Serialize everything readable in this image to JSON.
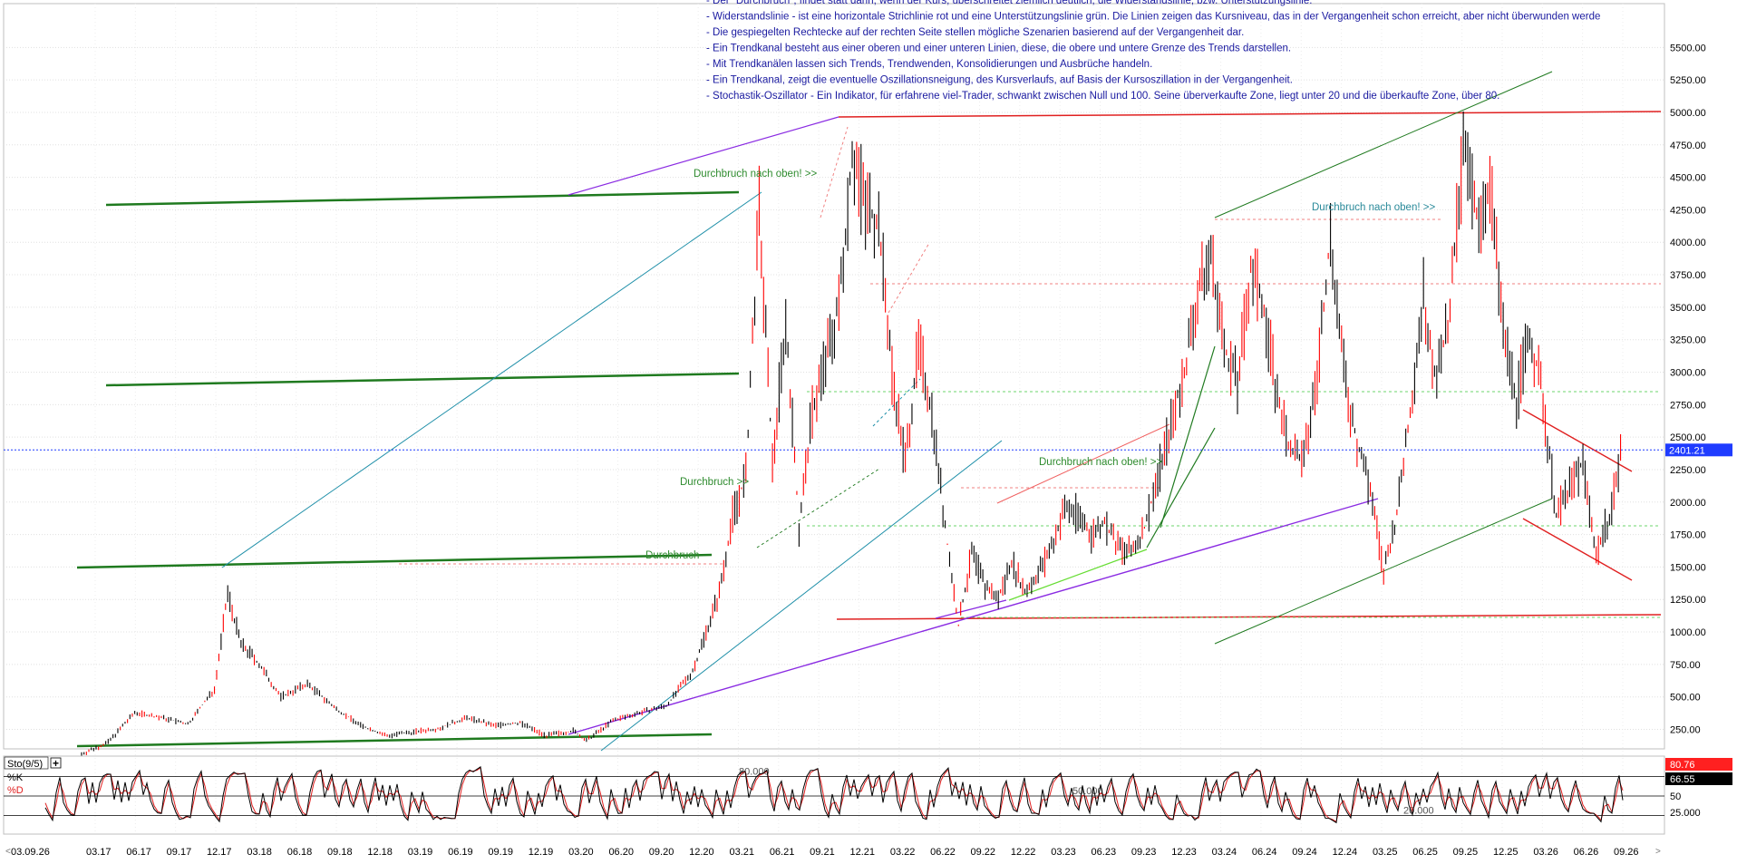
{
  "indicator": {
    "name": "Sto(9/5)",
    "k_label": "%K",
    "d_label": "%D"
  },
  "notes": [
    "- Der \"Durchbruch\", findet statt dann, wenn der Kurs, überschreitet ziemlich deutlich, die Widerstandslinie, bzw. Unterstützungslinie.",
    "- Widerstandslinie - ist eine horizontale Strichlinie rot und eine Unterstützungslinie grün. Die Linien zeigen das Kursniveau, das in der Vergangenheit schon erreicht, aber nicht überwunden werde",
    "- Die gespiegelten Rechtecke auf der rechten Seite stellen mögliche Szenarien basierend auf der Vergangenheit dar.",
    "- Ein Trendkanal besteht aus einer oberen und einer unteren Linien, diese, die obere und untere Grenze des Trends darstellen.",
    "- Mit Trendkanälen lassen sich Trends, Trendwenden, Konsolidierungen und Ausbrüche handeln.",
    " - Ein Trendkanal, zeigt die eventuelle Oszillationsneigung, des Kursverlaufs, auf Basis der Kursoszillation in der Vergangenheit.",
    "- Stochastik-Oszillator - Ein Indikator, für erfahrene viel-Trader, schwankt zwischen Null und 100. Seine überverkaufte Zone, liegt unter 20 und die überkaufte Zone, über 80."
  ],
  "annotations": [
    {
      "text": "Durchbruch nach oben! >>",
      "color": "#2e8b2e",
      "date": "2021-03",
      "price": 4280
    },
    {
      "text": "Durchbruch >>",
      "color": "#2e8b2e",
      "date": "2020-12",
      "price": 2050
    },
    {
      "text": "Durchbruch",
      "color": "#2e8b2e",
      "date": "2020-05",
      "price": 1480
    },
    {
      "text": "Durchbruch nach oben! >>",
      "color": "#2e8b2e",
      "date": "2022-09",
      "price": 2230
    },
    {
      "text": "Durchbruch nach oben! >>",
      "color": "#2a8a9a",
      "date": "2024-06",
      "price": 4130
    }
  ],
  "current_price": {
    "value": 2401.21,
    "label": "2401.21",
    "color": "#1f3cff"
  },
  "stoch_readouts": [
    {
      "label": "80.76",
      "value": 80.76,
      "bg": "#ff2020",
      "fg": "#ffffff"
    },
    {
      "label": "66.55",
      "value": 66.55,
      "bg": "#000000",
      "fg": "#ffffff"
    }
  ],
  "stoch_ticks": [
    "50",
    "25.000"
  ],
  "stoch_levels": [
    {
      "label": "80.000",
      "value": 80
    },
    {
      "label": "50.000",
      "value": 50
    },
    {
      "label": "20.000",
      "value": 20
    }
  ],
  "colors": {
    "candle": "#000000",
    "wick_red": "#ff0000",
    "support": "#1f7a1f",
    "resistance": "#e02020",
    "purple": "#8a2be2",
    "teal": "#1e8fa8",
    "grid": "#d9d9d9"
  },
  "chart_data": {
    "type": "line",
    "title": "",
    "xlabel": "",
    "ylabel": "",
    "ylim": [
      0,
      5700
    ],
    "x_tick_labels": [
      "03.09.26",
      "03.17",
      "06.17",
      "09.17",
      "12.17",
      "03.18",
      "06.18",
      "09.18",
      "12.18",
      "03.19",
      "06.19",
      "09.19",
      "12.19",
      "03.20",
      "06.20",
      "09.20",
      "12.20",
      "03.21",
      "06.21",
      "09.21",
      "12.21",
      "03.22",
      "06.22",
      "09.22",
      "12.22",
      "03.23",
      "06.23",
      "09.23",
      "12.23",
      "03.24",
      "06.24",
      "09.24",
      "12.24",
      "03.25",
      "06.25",
      "09.25",
      "12.25",
      "03.26",
      "06.26",
      "09.26"
    ],
    "y_tick_labels": [
      "250.00",
      "500.00",
      "750.00",
      "1000.00",
      "1250.00",
      "1500.00",
      "1750.00",
      "2000.00",
      "2250.00",
      "2500.00",
      "2750.00",
      "3000.00",
      "3250.00",
      "3500.00",
      "3750.00",
      "4000.00",
      "4250.00",
      "4500.00",
      "4750.00",
      "5000.00",
      "5250.00",
      "5500.00"
    ],
    "y_ticks": [
      250,
      500,
      750,
      1000,
      1250,
      1500,
      1750,
      2000,
      2250,
      2500,
      2750,
      3000,
      3250,
      3500,
      3750,
      4000,
      4250,
      4500,
      4750,
      5000,
      5250,
      5500
    ],
    "series": [
      {
        "x": [
          "2017-01",
          "2017-03",
          "2017-05",
          "2017-07",
          "2017-09",
          "2017-11",
          "2017-12",
          "2018-01",
          "2018-02",
          "2018-04",
          "2018-06",
          "2018-08",
          "2018-10",
          "2018-12",
          "2019-02",
          "2019-04",
          "2019-06",
          "2019-08",
          "2019-10",
          "2019-12",
          "2020-02",
          "2020-03",
          "2020-05",
          "2020-07",
          "2020-09",
          "2020-11",
          "2020-12",
          "2021-01",
          "2021-02",
          "2021-03",
          "2021-04",
          "2021-05",
          "2021-06",
          "2021-07",
          "2021-08",
          "2021-09",
          "2021-10",
          "2021-11",
          "2021-12",
          "2022-01",
          "2022-02",
          "2022-03",
          "2022-04",
          "2022-05",
          "2022-06",
          "2022-07",
          "2022-08",
          "2022-09",
          "2022-10",
          "2022-11",
          "2022-12",
          "2023-01",
          "2023-02",
          "2023-03",
          "2023-04",
          "2023-05",
          "2023-06",
          "2023-07",
          "2023-08",
          "2023-09",
          "2023-10",
          "2023-11",
          "2023-12",
          "2024-01",
          "2024-02",
          "2024-03",
          "2024-04",
          "2024-05",
          "2024-06",
          "2024-07",
          "2024-08",
          "2024-09",
          "2024-10",
          "2024-11",
          "2024-12",
          "2025-01",
          "2025-02",
          "2025-03",
          "2025-04",
          "2025-05",
          "2025-06",
          "2025-07",
          "2025-08",
          "2025-09",
          "2025-10",
          "2025-11",
          "2025-12",
          "2026-01",
          "2026-02",
          "2026-03",
          "2026-04",
          "2026-05",
          "2026-06",
          "2026-07",
          "2026-08",
          "2026-09"
        ],
        "values": [
          60,
          150,
          380,
          340,
          290,
          560,
          1300,
          900,
          800,
          500,
          600,
          420,
          280,
          200,
          230,
          260,
          340,
          280,
          300,
          200,
          240,
          160,
          320,
          380,
          430,
          700,
          1000,
          1300,
          1900,
          2200,
          4250,
          2300,
          3400,
          1800,
          2700,
          3100,
          3500,
          4700,
          4300,
          4150,
          3000,
          2300,
          3200,
          2700,
          1800,
          1050,
          1600,
          1350,
          1250,
          1550,
          1300,
          1450,
          1650,
          1950,
          1900,
          1750,
          1850,
          1650,
          1600,
          1800,
          2200,
          2600,
          3000,
          3600,
          3900,
          3200,
          2900,
          3800,
          3500,
          2800,
          2400,
          2300,
          3000,
          4050,
          3000,
          2450,
          2100,
          1450,
          1900,
          2700,
          3600,
          2900,
          3500,
          4700,
          4200,
          4450,
          3300,
          2800,
          3300,
          2800,
          1900,
          2100,
          2300,
          1600,
          1900,
          2450
        ]
      }
    ]
  }
}
